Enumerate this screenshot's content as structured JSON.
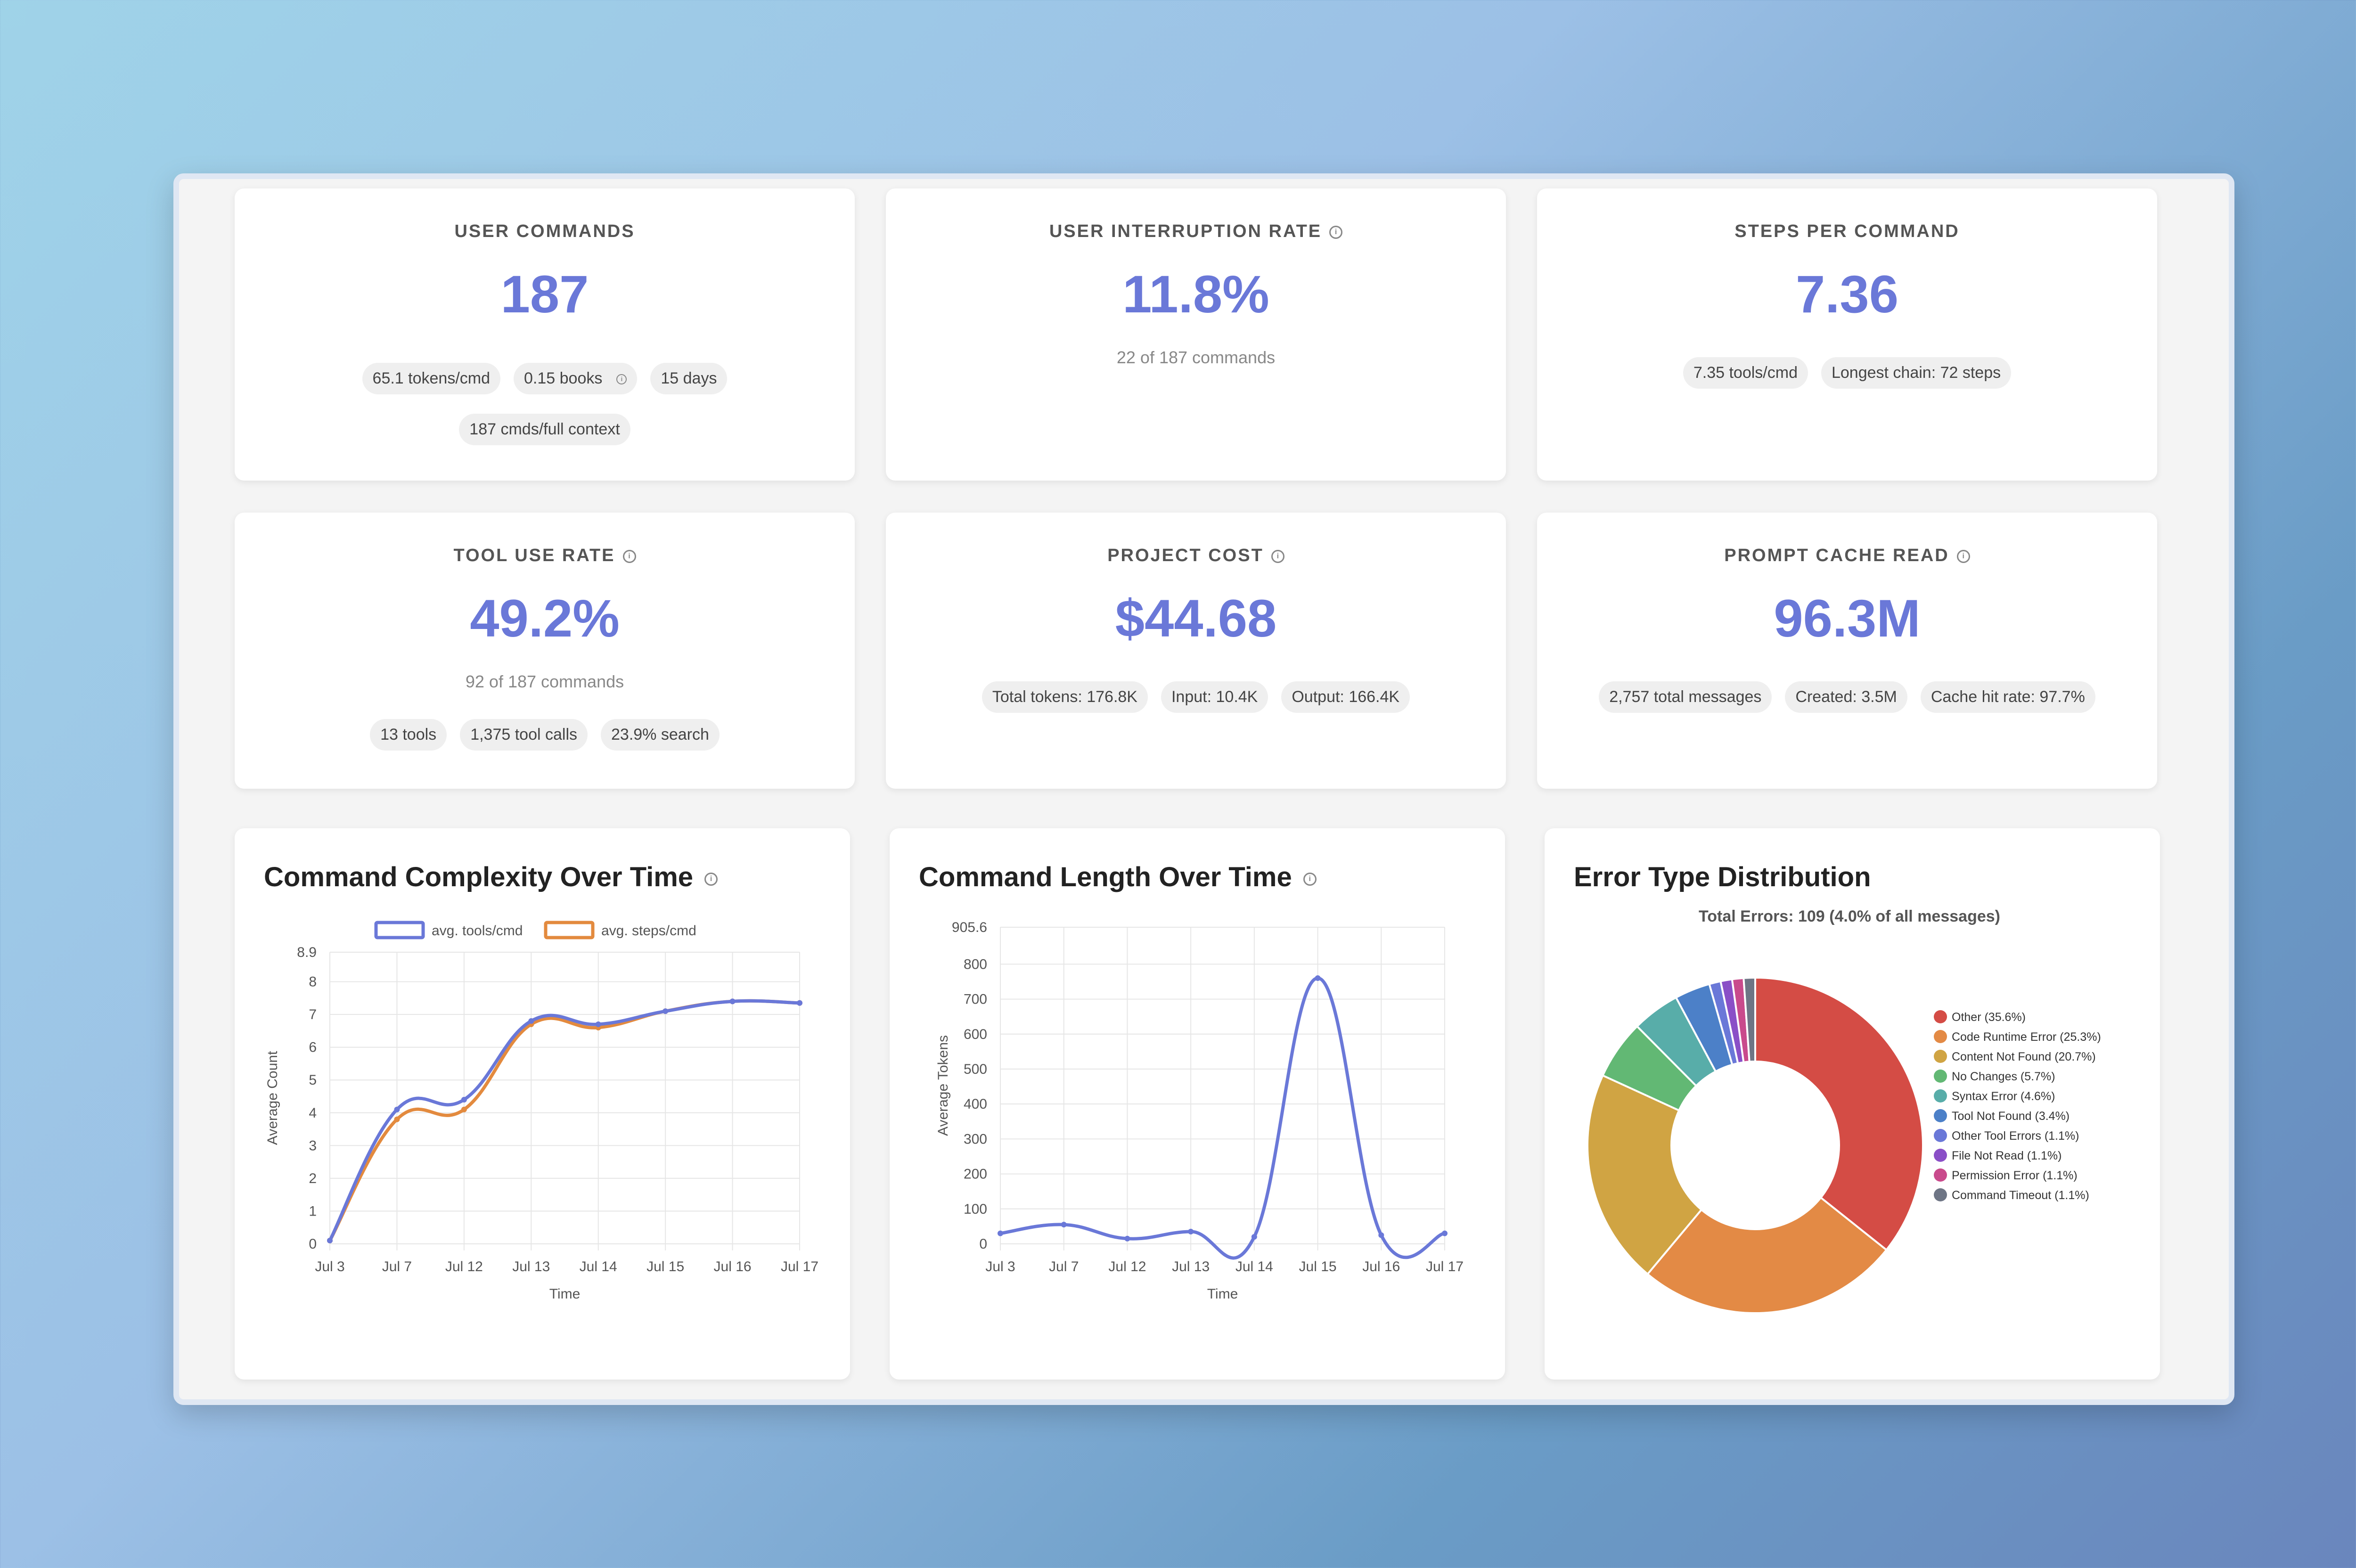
{
  "stats": [
    {
      "title": "USER COMMANDS",
      "value": "187",
      "sub": "",
      "info": false,
      "chips": [
        [
          {
            "t": "65.1 tokens/cmd"
          },
          {
            "t": "0.15 books",
            "info": true
          },
          {
            "t": "15 days"
          }
        ],
        [
          {
            "t": "187 cmds/full context"
          }
        ]
      ]
    },
    {
      "title": "USER INTERRUPTION RATE",
      "value": "11.8%",
      "sub": "22 of 187 commands",
      "info": true,
      "chips": []
    },
    {
      "title": "STEPS PER COMMAND",
      "value": "7.36",
      "sub": "",
      "info": false,
      "chips": [
        [
          {
            "t": "7.35 tools/cmd"
          },
          {
            "t": "Longest chain: 72 steps"
          }
        ]
      ]
    },
    {
      "title": "TOOL USE RATE",
      "value": "49.2%",
      "sub": "92 of 187 commands",
      "info": true,
      "chips": [
        [
          {
            "t": "13 tools"
          },
          {
            "t": "1,375 tool calls"
          },
          {
            "t": "23.9% search"
          }
        ]
      ]
    },
    {
      "title": "PROJECT COST",
      "value": "$44.68",
      "sub": "",
      "info": true,
      "chips": [
        [
          {
            "t": "Total tokens: 176.8K"
          },
          {
            "t": "Input: 10.4K"
          },
          {
            "t": "Output: 166.4K"
          }
        ]
      ]
    },
    {
      "title": "PROMPT CACHE READ",
      "value": "96.3M",
      "sub": "",
      "info": true,
      "chips": [
        [
          {
            "t": "2,757 total messages"
          },
          {
            "t": "Created: 3.5M"
          },
          {
            "t": "Cache hit rate: 97.7%"
          }
        ]
      ]
    }
  ],
  "chart_data": [
    {
      "type": "line",
      "title": "Command Complexity Over Time",
      "xlabel": "Time",
      "ylabel": "Average Count",
      "categories": [
        "Jul 3",
        "Jul 7",
        "Jul 12",
        "Jul 13",
        "Jul 14",
        "Jul 15",
        "Jul 16",
        "Jul 17"
      ],
      "ylim": [
        0,
        8.9
      ],
      "yticks": [
        "0",
        "1",
        "2",
        "3",
        "4",
        "5",
        "6",
        "7",
        "8",
        "8.9"
      ],
      "legend": "top",
      "series": [
        {
          "name": "avg. tools/cmd",
          "color": "#6a78d8",
          "values": [
            0.1,
            4.1,
            4.4,
            6.8,
            6.7,
            7.1,
            7.4,
            7.35
          ]
        },
        {
          "name": "avg. steps/cmd",
          "color": "#e38a3e",
          "values": [
            0.1,
            3.8,
            4.1,
            6.7,
            6.6,
            7.1,
            7.4,
            7.35
          ]
        }
      ]
    },
    {
      "type": "line",
      "title": "Command Length Over Time",
      "xlabel": "Time",
      "ylabel": "Average Tokens",
      "categories": [
        "Jul 3",
        "Jul 7",
        "Jul 12",
        "Jul 13",
        "Jul 14",
        "Jul 15",
        "Jul 16",
        "Jul 17"
      ],
      "ylim": [
        0,
        905.6
      ],
      "yticks": [
        "0",
        "100",
        "200",
        "300",
        "400",
        "500",
        "600",
        "700",
        "800",
        "905.6"
      ],
      "series": [
        {
          "name": "",
          "color": "#6a78d8",
          "values": [
            30,
            55,
            15,
            35,
            20,
            760,
            25,
            30
          ]
        }
      ]
    },
    {
      "type": "pie",
      "title": "Error Type Distribution",
      "subtitle": "Total Errors: 109 (4.0% of all messages)",
      "legend": "right",
      "slices": [
        {
          "label": "Other (35.6%)",
          "value": 35.6,
          "color": "#d44c45"
        },
        {
          "label": "Code Runtime Error (25.3%)",
          "value": 25.3,
          "color": "#e38a45"
        },
        {
          "label": "Content Not Found (20.7%)",
          "value": 20.7,
          "color": "#d0a443"
        },
        {
          "label": "No Changes (5.7%)",
          "value": 5.7,
          "color": "#62b874"
        },
        {
          "label": "Syntax Error (4.6%)",
          "value": 4.6,
          "color": "#58ada9"
        },
        {
          "label": "Tool Not Found (3.4%)",
          "value": 3.4,
          "color": "#4c80c8"
        },
        {
          "label": "Other Tool Errors (1.1%)",
          "value": 1.1,
          "color": "#6a78d8"
        },
        {
          "label": "File Not Read (1.1%)",
          "value": 1.1,
          "color": "#8a4fc7"
        },
        {
          "label": "Permission Error (1.1%)",
          "value": 1.1,
          "color": "#c94a8c"
        },
        {
          "label": "Command Timeout (1.1%)",
          "value": 1.1,
          "color": "#6e7585"
        }
      ]
    }
  ]
}
